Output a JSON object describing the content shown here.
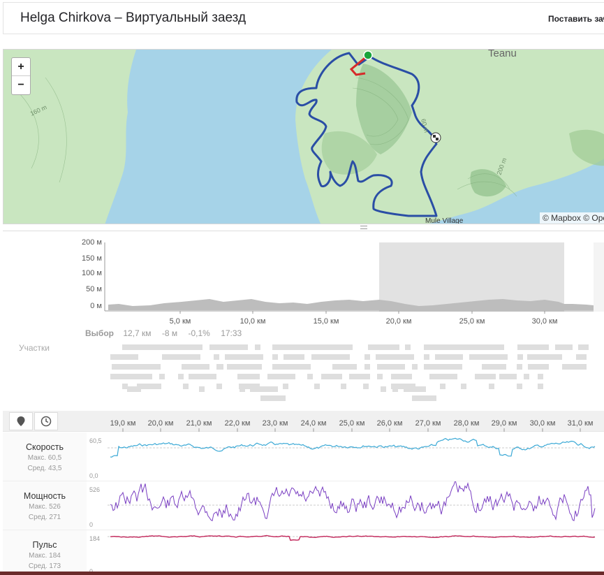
{
  "header": {
    "title": "Helga Chirkova – Виртуальный заезд",
    "action": "Поставить зачё"
  },
  "map": {
    "zoom_in": "+",
    "zoom_out": "−",
    "attribution": "© Mapbox © Ope",
    "labels": {
      "town": "Teanu",
      "village": "Mule Village",
      "c160": "160 m",
      "c200": "200 m",
      "c60": "60 m"
    },
    "colors": {
      "water": "#a6d3e8",
      "land": "#c9e6c0",
      "route": "#2a4ea5",
      "start_segment": "#d62a2a",
      "start": "#19a43a"
    }
  },
  "elevation": {
    "y_ticks": [
      "200 м",
      "150 м",
      "100 м",
      "50 м",
      "0 м"
    ],
    "x_ticks": [
      "5,0 км",
      "10,0 км",
      "15,0 км",
      "20,0 км",
      "25,0 км",
      "30,0 км"
    ]
  },
  "selection": {
    "label": "Выбор",
    "distance": "12,7 км",
    "elev": "-8 м",
    "grade": "-0,1%",
    "time": "17:33"
  },
  "segments_label": "Участки",
  "stream_axis": [
    "19,0 км",
    "20,0 км",
    "21,0 км",
    "22,0 км",
    "23,0 км",
    "24,0 км",
    "25,0 км",
    "26,0 км",
    "27,0 км",
    "28,0 км",
    "29,0 км",
    "30,0 км",
    "31,0 км"
  ],
  "streams": {
    "speed": {
      "name": "Скорость",
      "max": "Макс. 60,5",
      "avg": "Сред. 43,5",
      "top": "60,5",
      "bottom": "0,0",
      "color": "#3ba9d6"
    },
    "power": {
      "name": "Мощность",
      "max": "Макс. 526",
      "avg": "Сред. 271",
      "top": "526",
      "bottom": "0",
      "color": "#7a3fc2"
    },
    "hr": {
      "name": "Пульс",
      "max": "Макс. 184",
      "avg": "Сред. 173",
      "top": "184",
      "bottom": "0",
      "color": "#c2265a"
    }
  },
  "icons": {
    "marker": "map-marker-icon",
    "clock": "clock-icon"
  }
}
